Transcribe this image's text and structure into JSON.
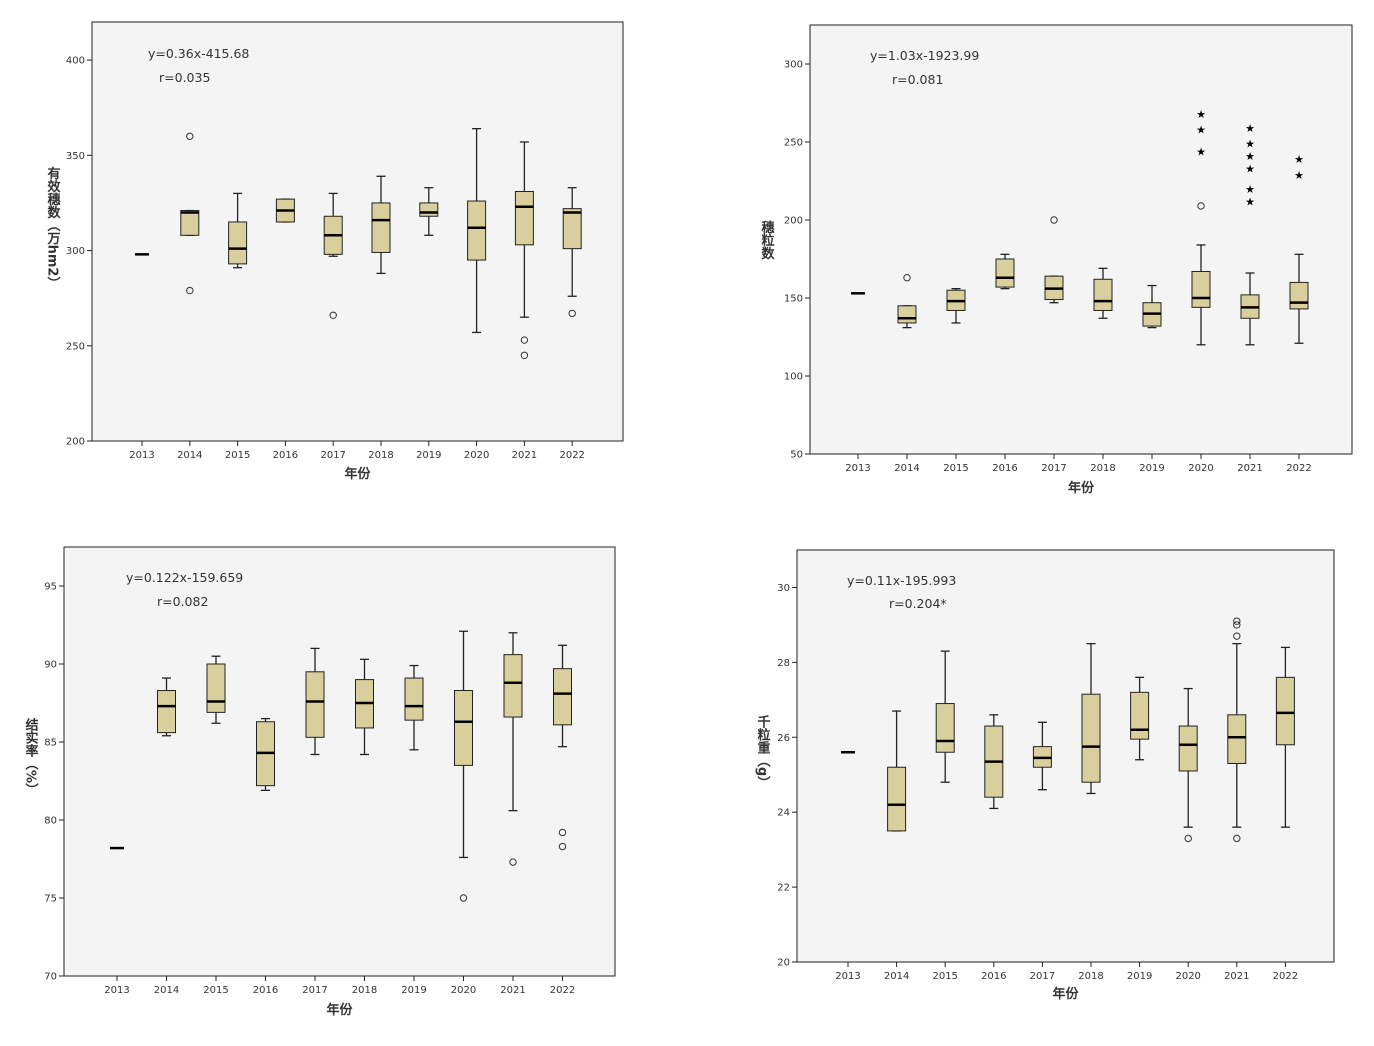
{
  "chart_data": [
    {
      "type": "boxplot",
      "xlabel": "年份",
      "ylabel": "有效穗数（万hm2）",
      "ylim": [
        200,
        420
      ],
      "yticks": [
        200,
        250,
        300,
        350,
        400
      ],
      "equation": "y=0.36x-415.68",
      "r": "r=0.035",
      "categories": [
        "2013",
        "2014",
        "2015",
        "2016",
        "2017",
        "2018",
        "2019",
        "2020",
        "2021",
        "2022"
      ],
      "boxes": [
        {
          "median": 298
        },
        {
          "min": 308,
          "q1": 308,
          "median": 320,
          "q3": 321,
          "max": 321
        },
        {
          "min": 291,
          "q1": 293,
          "median": 301,
          "q3": 315,
          "max": 330
        },
        {
          "min": 315,
          "q1": 315,
          "median": 321,
          "q3": 327,
          "max": 327
        },
        {
          "min": 297,
          "q1": 298,
          "median": 308,
          "q3": 318,
          "max": 330
        },
        {
          "min": 288,
          "q1": 299,
          "median": 316,
          "q3": 325,
          "max": 339
        },
        {
          "min": 308,
          "q1": 318,
          "median": 320,
          "q3": 325,
          "max": 333
        },
        {
          "min": 257,
          "q1": 295,
          "median": 312,
          "q3": 326,
          "max": 364
        },
        {
          "min": 265,
          "q1": 303,
          "median": 323,
          "q3": 331,
          "max": 357
        },
        {
          "min": 276,
          "q1": 301,
          "median": 320,
          "q3": 322,
          "max": 333
        }
      ],
      "outliers": [
        {
          "x": "2014",
          "y": 360,
          "marker": "circle"
        },
        {
          "x": "2014",
          "y": 279,
          "marker": "circle"
        },
        {
          "x": "2017",
          "y": 266,
          "marker": "circle"
        },
        {
          "x": "2021",
          "y": 253,
          "marker": "circle"
        },
        {
          "x": "2021",
          "y": 245,
          "marker": "circle"
        },
        {
          "x": "2022",
          "y": 267,
          "marker": "circle"
        }
      ]
    },
    {
      "type": "boxplot",
      "xlabel": "年份",
      "ylabel": "穗粒数",
      "ylim": [
        50,
        325
      ],
      "yticks": [
        50,
        100,
        150,
        200,
        250,
        300
      ],
      "equation": "y=1.03x-1923.99",
      "r": "r=0.081",
      "categories": [
        "2013",
        "2014",
        "2015",
        "2016",
        "2017",
        "2018",
        "2019",
        "2020",
        "2021",
        "2022"
      ],
      "boxes": [
        {
          "median": 153
        },
        {
          "min": 131,
          "q1": 134,
          "median": 137,
          "q3": 145,
          "max": 145
        },
        {
          "min": 134,
          "q1": 142,
          "median": 148,
          "q3": 155,
          "max": 156
        },
        {
          "min": 156,
          "q1": 157,
          "median": 163,
          "q3": 175,
          "max": 178
        },
        {
          "min": 147,
          "q1": 149,
          "median": 156,
          "q3": 164,
          "max": 164
        },
        {
          "min": 137,
          "q1": 142,
          "median": 148,
          "q3": 162,
          "max": 169
        },
        {
          "min": 131,
          "q1": 132,
          "median": 140,
          "q3": 147,
          "max": 158
        },
        {
          "min": 120,
          "q1": 144,
          "median": 150,
          "q3": 167,
          "max": 184
        },
        {
          "min": 120,
          "q1": 137,
          "median": 144,
          "q3": 152,
          "max": 166
        },
        {
          "min": 121,
          "q1": 143,
          "median": 147,
          "q3": 160,
          "max": 178
        }
      ],
      "outliers": [
        {
          "x": "2014",
          "y": 163,
          "marker": "circle"
        },
        {
          "x": "2017",
          "y": 200,
          "marker": "circle"
        },
        {
          "x": "2020",
          "y": 209,
          "marker": "circle"
        },
        {
          "x": "2020",
          "y": 244,
          "marker": "star"
        },
        {
          "x": "2020",
          "y": 258,
          "marker": "star"
        },
        {
          "x": "2020",
          "y": 268,
          "marker": "star"
        },
        {
          "x": "2021",
          "y": 212,
          "marker": "star"
        },
        {
          "x": "2021",
          "y": 220,
          "marker": "star"
        },
        {
          "x": "2021",
          "y": 233,
          "marker": "star"
        },
        {
          "x": "2021",
          "y": 241,
          "marker": "star"
        },
        {
          "x": "2021",
          "y": 249,
          "marker": "star"
        },
        {
          "x": "2021",
          "y": 259,
          "marker": "star"
        },
        {
          "x": "2022",
          "y": 229,
          "marker": "star"
        },
        {
          "x": "2022",
          "y": 239,
          "marker": "star"
        }
      ]
    },
    {
      "type": "boxplot",
      "xlabel": "年份",
      "ylabel": "结实率（%）",
      "ylim": [
        70,
        97.5
      ],
      "yticks": [
        70,
        75,
        80,
        85,
        90,
        95
      ],
      "equation": "y=0.122x-159.659",
      "r": "r=0.082",
      "categories": [
        "2013",
        "2014",
        "2015",
        "2016",
        "2017",
        "2018",
        "2019",
        "2020",
        "2021",
        "2022"
      ],
      "boxes": [
        {
          "median": 78.2
        },
        {
          "min": 85.4,
          "q1": 85.6,
          "median": 87.3,
          "q3": 88.3,
          "max": 89.1
        },
        {
          "min": 86.2,
          "q1": 86.9,
          "median": 87.6,
          "q3": 90.0,
          "max": 90.5
        },
        {
          "min": 81.9,
          "q1": 82.2,
          "median": 84.3,
          "q3": 86.3,
          "max": 86.5
        },
        {
          "min": 84.2,
          "q1": 85.3,
          "median": 87.6,
          "q3": 89.5,
          "max": 91.0
        },
        {
          "min": 84.2,
          "q1": 85.9,
          "median": 87.5,
          "q3": 89.0,
          "max": 90.3
        },
        {
          "min": 84.5,
          "q1": 86.4,
          "median": 87.3,
          "q3": 89.1,
          "max": 89.9
        },
        {
          "min": 77.6,
          "q1": 83.5,
          "median": 86.3,
          "q3": 88.3,
          "max": 92.1
        },
        {
          "min": 80.6,
          "q1": 86.6,
          "median": 88.8,
          "q3": 90.6,
          "max": 92.0
        },
        {
          "min": 84.7,
          "q1": 86.1,
          "median": 88.1,
          "q3": 89.7,
          "max": 91.2
        }
      ],
      "outliers": [
        {
          "x": "2020",
          "y": 75.0,
          "marker": "circle"
        },
        {
          "x": "2021",
          "y": 77.3,
          "marker": "circle"
        },
        {
          "x": "2022",
          "y": 79.2,
          "marker": "circle"
        },
        {
          "x": "2022",
          "y": 78.3,
          "marker": "circle"
        }
      ]
    },
    {
      "type": "boxplot",
      "xlabel": "年份",
      "ylabel": "千粒重（g）",
      "ylim": [
        20,
        31
      ],
      "yticks": [
        20,
        22,
        24,
        26,
        28,
        30
      ],
      "equation": "y=0.11x-195.993",
      "r": "r=0.204*",
      "categories": [
        "2013",
        "2014",
        "2015",
        "2016",
        "2017",
        "2018",
        "2019",
        "2020",
        "2021",
        "2022"
      ],
      "boxes": [
        {
          "median": 25.6
        },
        {
          "min": 23.5,
          "q1": 23.5,
          "median": 24.2,
          "q3": 25.2,
          "max": 26.7
        },
        {
          "min": 24.8,
          "q1": 25.6,
          "median": 25.9,
          "q3": 26.9,
          "max": 28.3
        },
        {
          "min": 24.1,
          "q1": 24.4,
          "median": 25.35,
          "q3": 26.3,
          "max": 26.6
        },
        {
          "min": 24.6,
          "q1": 25.2,
          "median": 25.45,
          "q3": 25.75,
          "max": 26.4
        },
        {
          "min": 24.5,
          "q1": 24.8,
          "median": 25.75,
          "q3": 27.15,
          "max": 28.5
        },
        {
          "min": 25.4,
          "q1": 25.95,
          "median": 26.2,
          "q3": 27.2,
          "max": 27.6
        },
        {
          "min": 23.6,
          "q1": 25.1,
          "median": 25.8,
          "q3": 26.3,
          "max": 27.3
        },
        {
          "min": 23.6,
          "q1": 25.3,
          "median": 26.0,
          "q3": 26.6,
          "max": 28.5
        },
        {
          "min": 23.6,
          "q1": 25.8,
          "median": 26.65,
          "q3": 27.6,
          "max": 28.4
        }
      ],
      "outliers": [
        {
          "x": "2020",
          "y": 23.3,
          "marker": "circle"
        },
        {
          "x": "2021",
          "y": 23.3,
          "marker": "circle"
        },
        {
          "x": "2021",
          "y": 28.7,
          "marker": "circle"
        },
        {
          "x": "2021",
          "y": 29.0,
          "marker": "circle"
        },
        {
          "x": "2021",
          "y": 29.1,
          "marker": "circle"
        }
      ]
    }
  ],
  "colors": {
    "box_fill": "#d8cf9c",
    "plot_bg": "#f4f4f4",
    "stroke": "#222222",
    "text": "#333333"
  }
}
